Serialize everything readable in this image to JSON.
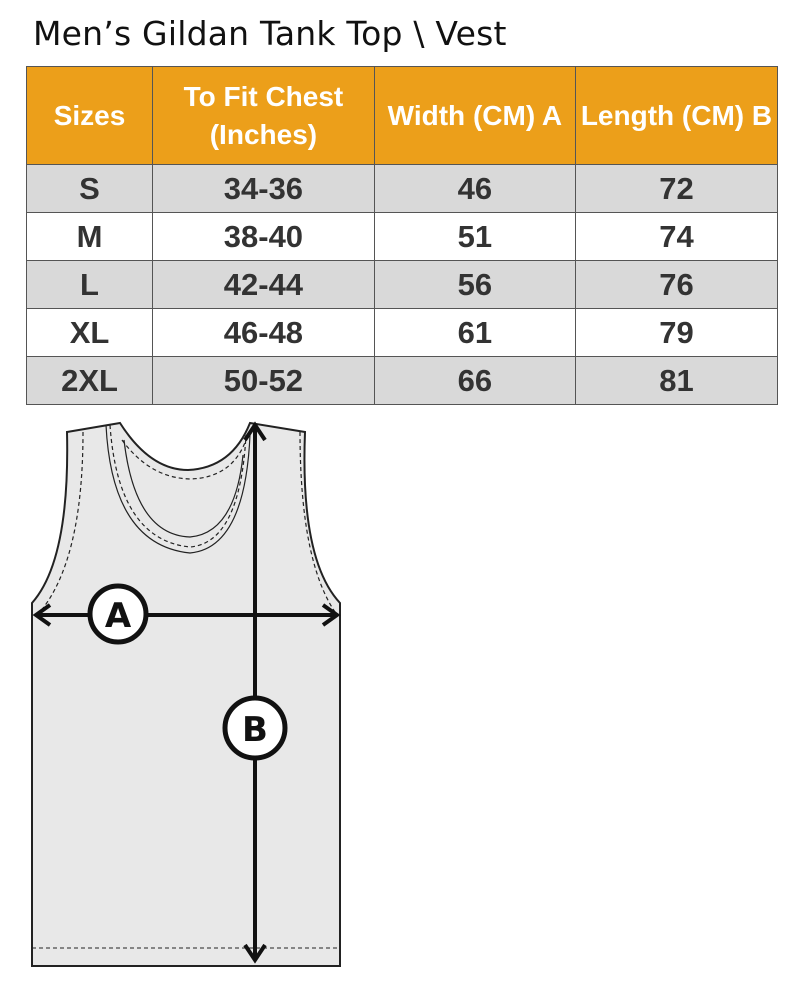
{
  "title": "Men’s Gildan Tank Top \\ Vest",
  "table": {
    "headers": [
      "Sizes",
      "To Fit Chest (Inches)",
      "Width (CM) A",
      "Length  (CM) B"
    ],
    "rows": [
      [
        "S",
        "34-36",
        "46",
        "72"
      ],
      [
        "M",
        "38-40",
        "51",
        "74"
      ],
      [
        "L",
        "42-44",
        "56",
        "76"
      ],
      [
        "XL",
        "46-48",
        "61",
        "79"
      ],
      [
        "2XL",
        "50-52",
        "66",
        "81"
      ]
    ]
  },
  "diagram": {
    "label_a": "A",
    "label_b": "B"
  },
  "colors": {
    "header": "#ec9f1a",
    "row_alt": "#d9d9d9"
  }
}
